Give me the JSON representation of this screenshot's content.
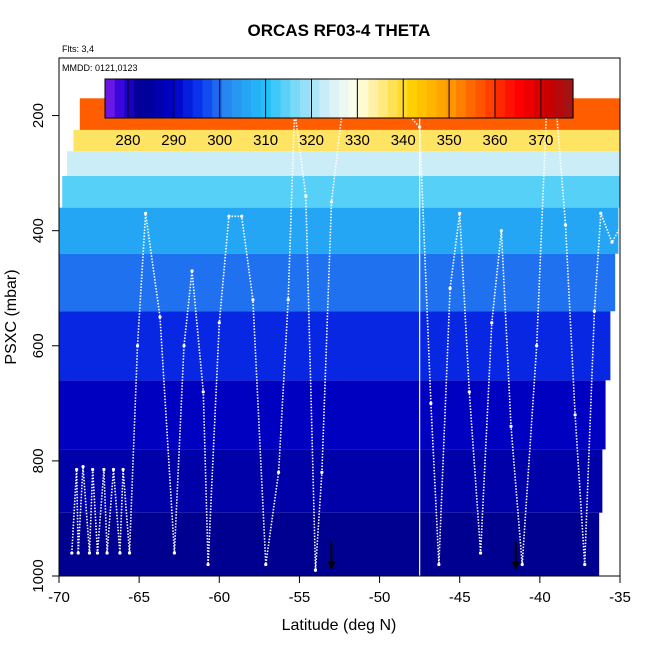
{
  "chart_data": {
    "type": "heatmap",
    "title": "ORCAS RF03-4 THETA",
    "subtitle_flights": "Flts: 3,4",
    "subtitle_dates": "MMDD: 0121,0123",
    "xlabel": "Latitude (deg N)",
    "ylabel": "PSXC (mbar)",
    "xlim": [
      -70,
      -35
    ],
    "ylim": [
      1000,
      100
    ],
    "x_ticks": [
      -70,
      -65,
      -60,
      -55,
      -50,
      -45,
      -40,
      -35
    ],
    "x_tick_labels": [
      "-70",
      "-65",
      "-60",
      "-55",
      "-50",
      "-45",
      "-40",
      "-35"
    ],
    "y_ticks": [
      1000,
      800,
      600,
      400,
      200
    ],
    "y_tick_labels": [
      "1000",
      "800",
      "600",
      "400",
      "200"
    ],
    "colorbar": {
      "range": [
        275,
        377
      ],
      "ticks": [
        280,
        290,
        300,
        310,
        320,
        330,
        340,
        350,
        360,
        370
      ],
      "tick_labels": [
        "280",
        "290",
        "300",
        "310",
        "320",
        "330",
        "340",
        "350",
        "360",
        "370"
      ],
      "stops": [
        {
          "v": 275,
          "c": "#7f1fe8"
        },
        {
          "v": 279,
          "c": "#2a00d8"
        },
        {
          "v": 283,
          "c": "#000090"
        },
        {
          "v": 290,
          "c": "#0000c8"
        },
        {
          "v": 296,
          "c": "#0a3af0"
        },
        {
          "v": 302,
          "c": "#2a8cf0"
        },
        {
          "v": 310,
          "c": "#20c0f8"
        },
        {
          "v": 317,
          "c": "#80dcf8"
        },
        {
          "v": 324,
          "c": "#d8f0f8"
        },
        {
          "v": 330,
          "c": "#ffffe8"
        },
        {
          "v": 336,
          "c": "#ffe878"
        },
        {
          "v": 342,
          "c": "#ffd000"
        },
        {
          "v": 350,
          "c": "#ff9a00"
        },
        {
          "v": 358,
          "c": "#ff4800"
        },
        {
          "v": 365,
          "c": "#ff0000"
        },
        {
          "v": 372,
          "c": "#c80000"
        },
        {
          "v": 377,
          "c": "#9a1818"
        }
      ]
    },
    "heatmap_rows": [
      {
        "p_top": 170,
        "p_bottom": 225,
        "lat_min": -68.7,
        "lat_max": -35,
        "theta": 356
      },
      {
        "p_top": 225,
        "p_bottom": 262,
        "lat_min": -69.1,
        "lat_max": -35,
        "theta": 337
      },
      {
        "p_top": 262,
        "p_bottom": 305,
        "lat_min": -69.5,
        "lat_max": -35,
        "theta": 323
      },
      {
        "p_top": 305,
        "p_bottom": 360,
        "lat_min": -69.8,
        "lat_max": -35,
        "theta": 314
      },
      {
        "p_top": 360,
        "p_bottom": 440,
        "lat_min": -70.2,
        "lat_max": -35.1,
        "theta": 306
      },
      {
        "p_top": 440,
        "p_bottom": 540,
        "lat_min": -70.5,
        "lat_max": -35.3,
        "theta": 300
      },
      {
        "p_top": 540,
        "p_bottom": 660,
        "lat_min": -70.8,
        "lat_max": -35.6,
        "theta": 294
      },
      {
        "p_top": 660,
        "p_bottom": 780,
        "lat_min": -71.1,
        "lat_max": -35.9,
        "theta": 289
      },
      {
        "p_top": 780,
        "p_bottom": 890,
        "lat_min": -71.3,
        "lat_max": -36.1,
        "theta": 286
      },
      {
        "p_top": 890,
        "p_bottom": 1010,
        "lat_min": -71.5,
        "lat_max": -36.3,
        "theta": 283
      }
    ],
    "flight_track": {
      "color": "#ffffff",
      "lat": [
        -69.2,
        -68.9,
        -68.8,
        -68.5,
        -68.1,
        -67.9,
        -67.6,
        -67.2,
        -67.0,
        -66.6,
        -66.2,
        -66.0,
        -65.6,
        -65.1,
        -64.6,
        -63.7,
        -62.8,
        -62.2,
        -61.7,
        -61.0,
        -60.7,
        -60.0,
        -59.4,
        -58.6,
        -57.9,
        -57.1,
        -56.3,
        -55.7,
        -55.3,
        -54.6,
        -54.0,
        -53.6,
        -53.0,
        -52.3,
        -51.2,
        -50.2,
        -48.8,
        -47.5,
        -46.8,
        -46.3,
        -45.6,
        -45.0,
        -44.4,
        -43.7,
        -43.0,
        -42.4,
        -41.8,
        -41.1,
        -40.2,
        -39.6,
        -39.0,
        -38.4,
        -37.8,
        -37.2,
        -36.6,
        -36.2,
        -35.5,
        -35.0
      ],
      "pressure": [
        960,
        815,
        960,
        810,
        960,
        815,
        960,
        815,
        960,
        815,
        960,
        815,
        960,
        600,
        370,
        550,
        960,
        600,
        470,
        680,
        980,
        560,
        375,
        375,
        520,
        980,
        820,
        520,
        190,
        340,
        990,
        820,
        350,
        185,
        180,
        200,
        180,
        220,
        700,
        980,
        500,
        370,
        680,
        960,
        560,
        400,
        740,
        980,
        600,
        200,
        180,
        390,
        720,
        980,
        540,
        370,
        420,
        395
      ]
    },
    "markers": [
      {
        "lat": -53.0,
        "p": 985
      },
      {
        "lat": -41.5,
        "p": 985
      }
    ],
    "vertical_line_lat": -47.5
  }
}
